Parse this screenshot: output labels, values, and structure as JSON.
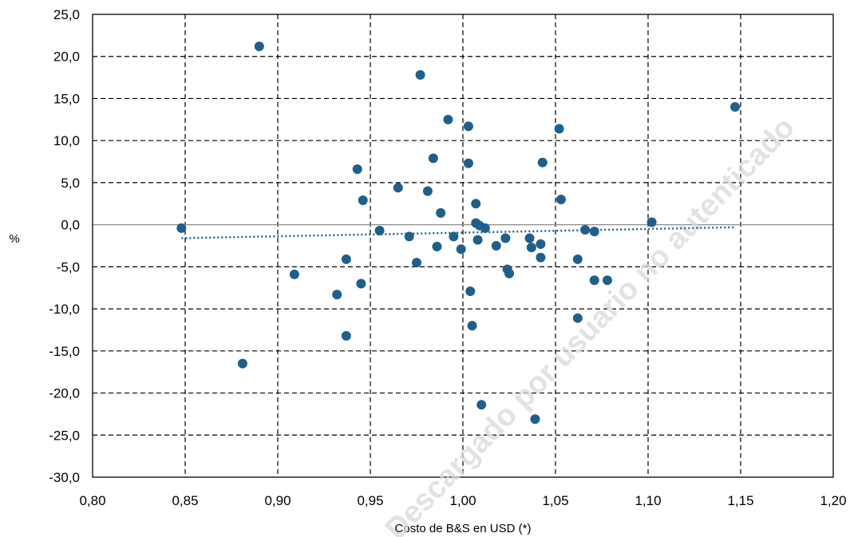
{
  "chart_data": {
    "type": "scatter",
    "xlabel": "Costo de B&S en USD (*)",
    "ylabel": "%",
    "xlim": [
      0.8,
      1.2
    ],
    "ylim": [
      -30,
      25
    ],
    "x_ticks": [
      "0,80",
      "0,85",
      "0,90",
      "0,95",
      "1,00",
      "1,05",
      "1,10",
      "1,15",
      "1,20"
    ],
    "y_ticks": [
      "25,0",
      "20,0",
      "15,0",
      "10,0",
      "5,0",
      "0,0",
      "-5,0",
      "-10,0",
      "-15,0",
      "-20,0",
      "-25,0",
      "-30,0"
    ],
    "grid": true,
    "legend": "none",
    "marker_color": "#1f5f8b",
    "trend_color": "#1f5f8b",
    "points": [
      {
        "x": 0.848,
        "y": -0.4
      },
      {
        "x": 0.881,
        "y": -16.5
      },
      {
        "x": 0.89,
        "y": 21.2
      },
      {
        "x": 0.909,
        "y": -5.9
      },
      {
        "x": 0.932,
        "y": -8.3
      },
      {
        "x": 0.937,
        "y": -4.1
      },
      {
        "x": 0.937,
        "y": -13.2
      },
      {
        "x": 0.943,
        "y": 6.6
      },
      {
        "x": 0.945,
        "y": -7.0
      },
      {
        "x": 0.946,
        "y": 2.9
      },
      {
        "x": 0.955,
        "y": -0.7
      },
      {
        "x": 0.965,
        "y": 4.4
      },
      {
        "x": 0.971,
        "y": -1.4
      },
      {
        "x": 0.975,
        "y": -4.5
      },
      {
        "x": 0.977,
        "y": 17.8
      },
      {
        "x": 0.981,
        "y": 4.0
      },
      {
        "x": 0.984,
        "y": 7.9
      },
      {
        "x": 0.986,
        "y": -2.6
      },
      {
        "x": 0.988,
        "y": 1.4
      },
      {
        "x": 0.992,
        "y": 12.5
      },
      {
        "x": 0.995,
        "y": -1.4
      },
      {
        "x": 0.999,
        "y": -2.9
      },
      {
        "x": 1.003,
        "y": 11.7
      },
      {
        "x": 1.003,
        "y": 7.3
      },
      {
        "x": 1.004,
        "y": -7.9
      },
      {
        "x": 1.005,
        "y": -12.0
      },
      {
        "x": 1.007,
        "y": 2.5
      },
      {
        "x": 1.007,
        "y": 0.2
      },
      {
        "x": 1.008,
        "y": -1.8
      },
      {
        "x": 1.009,
        "y": -0.1
      },
      {
        "x": 1.01,
        "y": -21.4
      },
      {
        "x": 1.012,
        "y": -0.4
      },
      {
        "x": 1.018,
        "y": -2.5
      },
      {
        "x": 1.023,
        "y": -1.6
      },
      {
        "x": 1.024,
        "y": -5.3
      },
      {
        "x": 1.025,
        "y": -5.8
      },
      {
        "x": 1.036,
        "y": -1.6
      },
      {
        "x": 1.037,
        "y": -2.7
      },
      {
        "x": 1.039,
        "y": -23.1
      },
      {
        "x": 1.042,
        "y": -2.3
      },
      {
        "x": 1.042,
        "y": -3.9
      },
      {
        "x": 1.043,
        "y": 7.4
      },
      {
        "x": 1.052,
        "y": 11.4
      },
      {
        "x": 1.053,
        "y": 3.0
      },
      {
        "x": 1.062,
        "y": -11.1
      },
      {
        "x": 1.062,
        "y": -4.1
      },
      {
        "x": 1.066,
        "y": -0.6
      },
      {
        "x": 1.071,
        "y": -0.8
      },
      {
        "x": 1.071,
        "y": -6.6
      },
      {
        "x": 1.078,
        "y": -6.6
      },
      {
        "x": 1.102,
        "y": 0.3
      },
      {
        "x": 1.147,
        "y": 14.0
      }
    ],
    "trendline": {
      "style": "dotted",
      "x": [
        0.848,
        1.147
      ],
      "y": [
        -1.6,
        -0.3
      ]
    }
  },
  "watermark": {
    "text": "Descargado por usuario no autenticado"
  }
}
